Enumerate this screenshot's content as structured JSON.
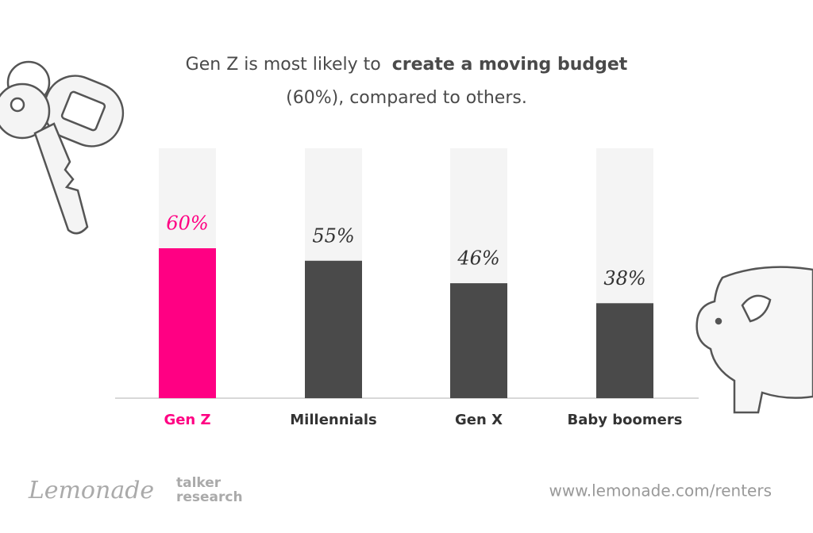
{
  "chart_data": {
    "type": "bar",
    "title": [
      "Gen Z is most likely to",
      "create a moving budget",
      "(60%), compared to others."
    ],
    "categories": [
      "Gen Z",
      "Millennials",
      "Gen X",
      "Baby boomers"
    ],
    "values": [
      60,
      55,
      46,
      38
    ],
    "value_labels": [
      "60%",
      "55%",
      "46%",
      "38%"
    ],
    "colors": [
      "#ff0083",
      "#4a4a4a",
      "#4a4a4a",
      "#4a4a4a"
    ],
    "ylim": [
      0,
      100
    ],
    "brand": "Lemonade",
    "partner": [
      "talker",
      "research"
    ],
    "url": "www.lemonade.com/renters"
  }
}
